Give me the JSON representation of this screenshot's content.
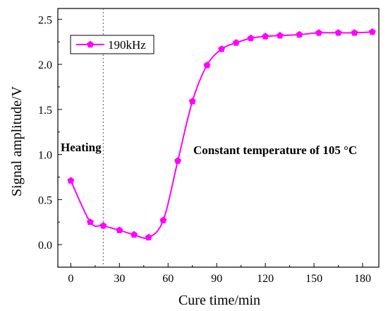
{
  "chart_data": {
    "type": "line",
    "x": [
      0,
      12,
      20,
      30,
      39,
      48,
      57,
      66,
      75,
      84,
      93,
      102,
      111,
      120,
      129,
      141,
      153,
      165,
      175,
      186
    ],
    "series": [
      {
        "name": "190kHz",
        "values": [
          0.71,
          0.25,
          0.21,
          0.16,
          0.11,
          0.08,
          0.27,
          0.93,
          1.59,
          1.99,
          2.17,
          2.24,
          2.29,
          2.31,
          2.32,
          2.33,
          2.35,
          2.35,
          2.35,
          2.36
        ],
        "color": "#ff00ff",
        "marker": "pentagon"
      }
    ],
    "xlabel": "Cure time/min",
    "ylabel": "Signal amplitude/V",
    "xlim": [
      -8,
      190
    ],
    "ylim": [
      -0.25,
      2.62
    ],
    "xticks": [
      0,
      30,
      60,
      90,
      120,
      150,
      180
    ],
    "yticks": [
      0.0,
      0.5,
      1.0,
      1.5,
      2.0,
      2.5
    ],
    "ytick_labels": [
      "0.0",
      "0.5",
      "1.0",
      "1.5",
      "2.0",
      "2.5"
    ],
    "vline_x": 20,
    "legend_position": "top-left",
    "grid": false,
    "annotations": [
      {
        "text": "Heating",
        "bold": true
      },
      {
        "text": "Constant temperature of 105 °C",
        "bold": true
      }
    ]
  }
}
